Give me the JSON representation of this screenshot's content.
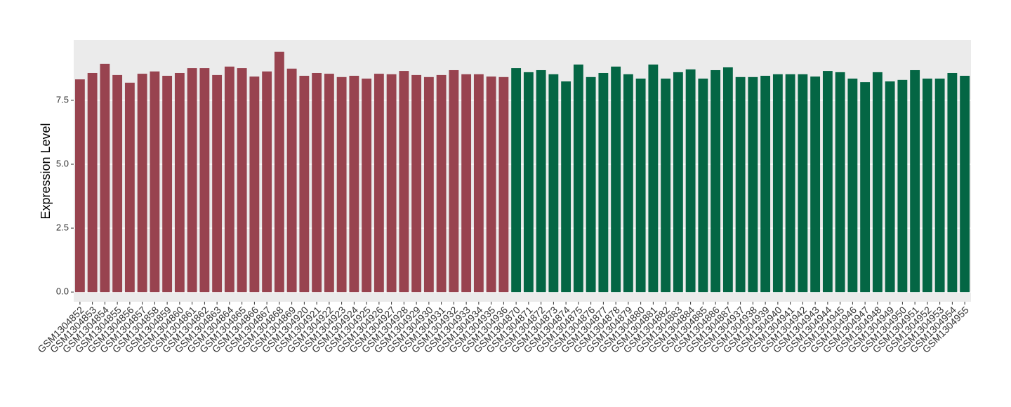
{
  "chart_data": {
    "type": "bar",
    "y_label": "Expression Level",
    "categories": [
      "GSM1304852",
      "GSM1304853",
      "GSM1304854",
      "GSM1304855",
      "GSM1304856",
      "GSM1304857",
      "GSM1304858",
      "GSM1304859",
      "GSM1304860",
      "GSM1304861",
      "GSM1304862",
      "GSM1304863",
      "GSM1304864",
      "GSM1304865",
      "GSM1304866",
      "GSM1304867",
      "GSM1304868",
      "GSM1304869",
      "GSM1304920",
      "GSM1304921",
      "GSM1304922",
      "GSM1304923",
      "GSM1304924",
      "GSM1304925",
      "GSM1304926",
      "GSM1304927",
      "GSM1304928",
      "GSM1304929",
      "GSM1304930",
      "GSM1304931",
      "GSM1304932",
      "GSM1304933",
      "GSM1304934",
      "GSM1304935",
      "GSM1304936",
      "GSM1304870",
      "GSM1304871",
      "GSM1304872",
      "GSM1304873",
      "GSM1304874",
      "GSM1304875",
      "GSM1304876",
      "GSM1304877",
      "GSM1304878",
      "GSM1304879",
      "GSM1304880",
      "GSM1304881",
      "GSM1304882",
      "GSM1304883",
      "GSM1304884",
      "GSM1304885",
      "GSM1304886",
      "GSM1304887",
      "GSM1304937",
      "GSM1304938",
      "GSM1304939",
      "GSM1304940",
      "GSM1304941",
      "GSM1304942",
      "GSM1304943",
      "GSM1304944",
      "GSM1304945",
      "GSM1304946",
      "GSM1304947",
      "GSM1304948",
      "GSM1304949",
      "GSM1304950",
      "GSM1304951",
      "GSM1304952",
      "GSM1304953",
      "GSM1304954",
      "GSM1304955"
    ],
    "values": [
      8.32,
      8.57,
      8.93,
      8.49,
      8.19,
      8.54,
      8.63,
      8.46,
      8.57,
      8.76,
      8.76,
      8.49,
      8.82,
      8.76,
      8.43,
      8.63,
      9.4,
      8.74,
      8.46,
      8.57,
      8.54,
      8.41,
      8.46,
      8.35,
      8.54,
      8.52,
      8.65,
      8.49,
      8.41,
      8.49,
      8.68,
      8.52,
      8.52,
      8.43,
      8.41,
      8.76,
      8.6,
      8.68,
      8.52,
      8.24,
      8.9,
      8.41,
      8.57,
      8.82,
      8.52,
      8.35,
      8.9,
      8.35,
      8.6,
      8.71,
      8.35,
      8.68,
      8.79,
      8.41,
      8.41,
      8.46,
      8.52,
      8.52,
      8.52,
      8.43,
      8.65,
      8.6,
      8.35,
      8.21,
      8.6,
      8.24,
      8.3,
      8.68,
      8.35,
      8.35,
      8.57,
      8.46
    ],
    "colors": [
      "#98434f",
      "#98434f",
      "#98434f",
      "#98434f",
      "#98434f",
      "#98434f",
      "#98434f",
      "#98434f",
      "#98434f",
      "#98434f",
      "#98434f",
      "#98434f",
      "#98434f",
      "#98434f",
      "#98434f",
      "#98434f",
      "#98434f",
      "#98434f",
      "#98434f",
      "#98434f",
      "#98434f",
      "#98434f",
      "#98434f",
      "#98434f",
      "#98434f",
      "#98434f",
      "#98434f",
      "#98434f",
      "#98434f",
      "#98434f",
      "#98434f",
      "#98434f",
      "#98434f",
      "#98434f",
      "#98434f",
      "#046644",
      "#046644",
      "#046644",
      "#046644",
      "#046644",
      "#046644",
      "#046644",
      "#046644",
      "#046644",
      "#046644",
      "#046644",
      "#046644",
      "#046644",
      "#046644",
      "#046644",
      "#046644",
      "#046644",
      "#046644",
      "#046644",
      "#046644",
      "#046644",
      "#046644",
      "#046644",
      "#046644",
      "#046644",
      "#046644",
      "#046644",
      "#046644",
      "#046644",
      "#046644",
      "#046644",
      "#046644",
      "#046644",
      "#046644",
      "#046644",
      "#046644",
      "#046644"
    ],
    "ylim": [
      -0.38,
      9.86
    ],
    "yticks": [
      {
        "value": 0,
        "label": "0.0"
      },
      2.5,
      {
        "value": 5,
        "label": "5.0"
      },
      7.5
    ],
    "grid": true
  }
}
